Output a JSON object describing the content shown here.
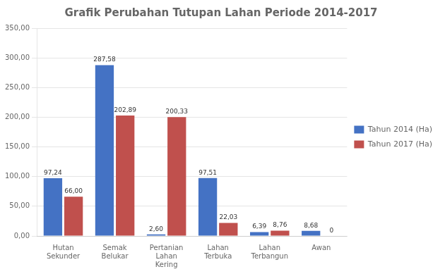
{
  "chart_data": {
    "type": "bar",
    "title": "Grafik Perubahan Tutupan Lahan Periode 2014-2017",
    "categories": [
      "Hutan\nSekunder",
      "Semak\nBelukar",
      "Pertanian\nLahan\nKering",
      "Lahan\nTerbuka",
      "Lahan\nTerbangun",
      "Awan"
    ],
    "series": [
      {
        "name": "Tahun 2014 (Ha)",
        "color": "#4472C4",
        "values": [
          97.24,
          287.58,
          2.6,
          97.51,
          6.39,
          8.68
        ],
        "value_labels": [
          "97,24",
          "287,58",
          "2,60",
          "97,51",
          "6,39",
          "8,68"
        ]
      },
      {
        "name": "Tahun 2017 (Ha)",
        "color": "#C0504D",
        "values": [
          66.0,
          202.89,
          200.33,
          22.03,
          8.76,
          0
        ],
        "value_labels": [
          "66,00",
          "202,89",
          "200,33",
          "22,03",
          "8,76",
          "0"
        ]
      }
    ],
    "ylim": [
      0,
      350
    ],
    "yticks": [
      {
        "value": 0,
        "label": "0,00"
      },
      {
        "value": 50,
        "label": "50,00"
      },
      {
        "value": 100,
        "label": "100,00"
      },
      {
        "value": 150,
        "label": "150,00"
      },
      {
        "value": 200,
        "label": "200,00"
      },
      {
        "value": 250,
        "label": "250,00"
      },
      {
        "value": 300,
        "label": "300,00"
      },
      {
        "value": 350,
        "label": "350,00"
      }
    ],
    "grid": true,
    "legend": "right",
    "data_labels": true
  }
}
